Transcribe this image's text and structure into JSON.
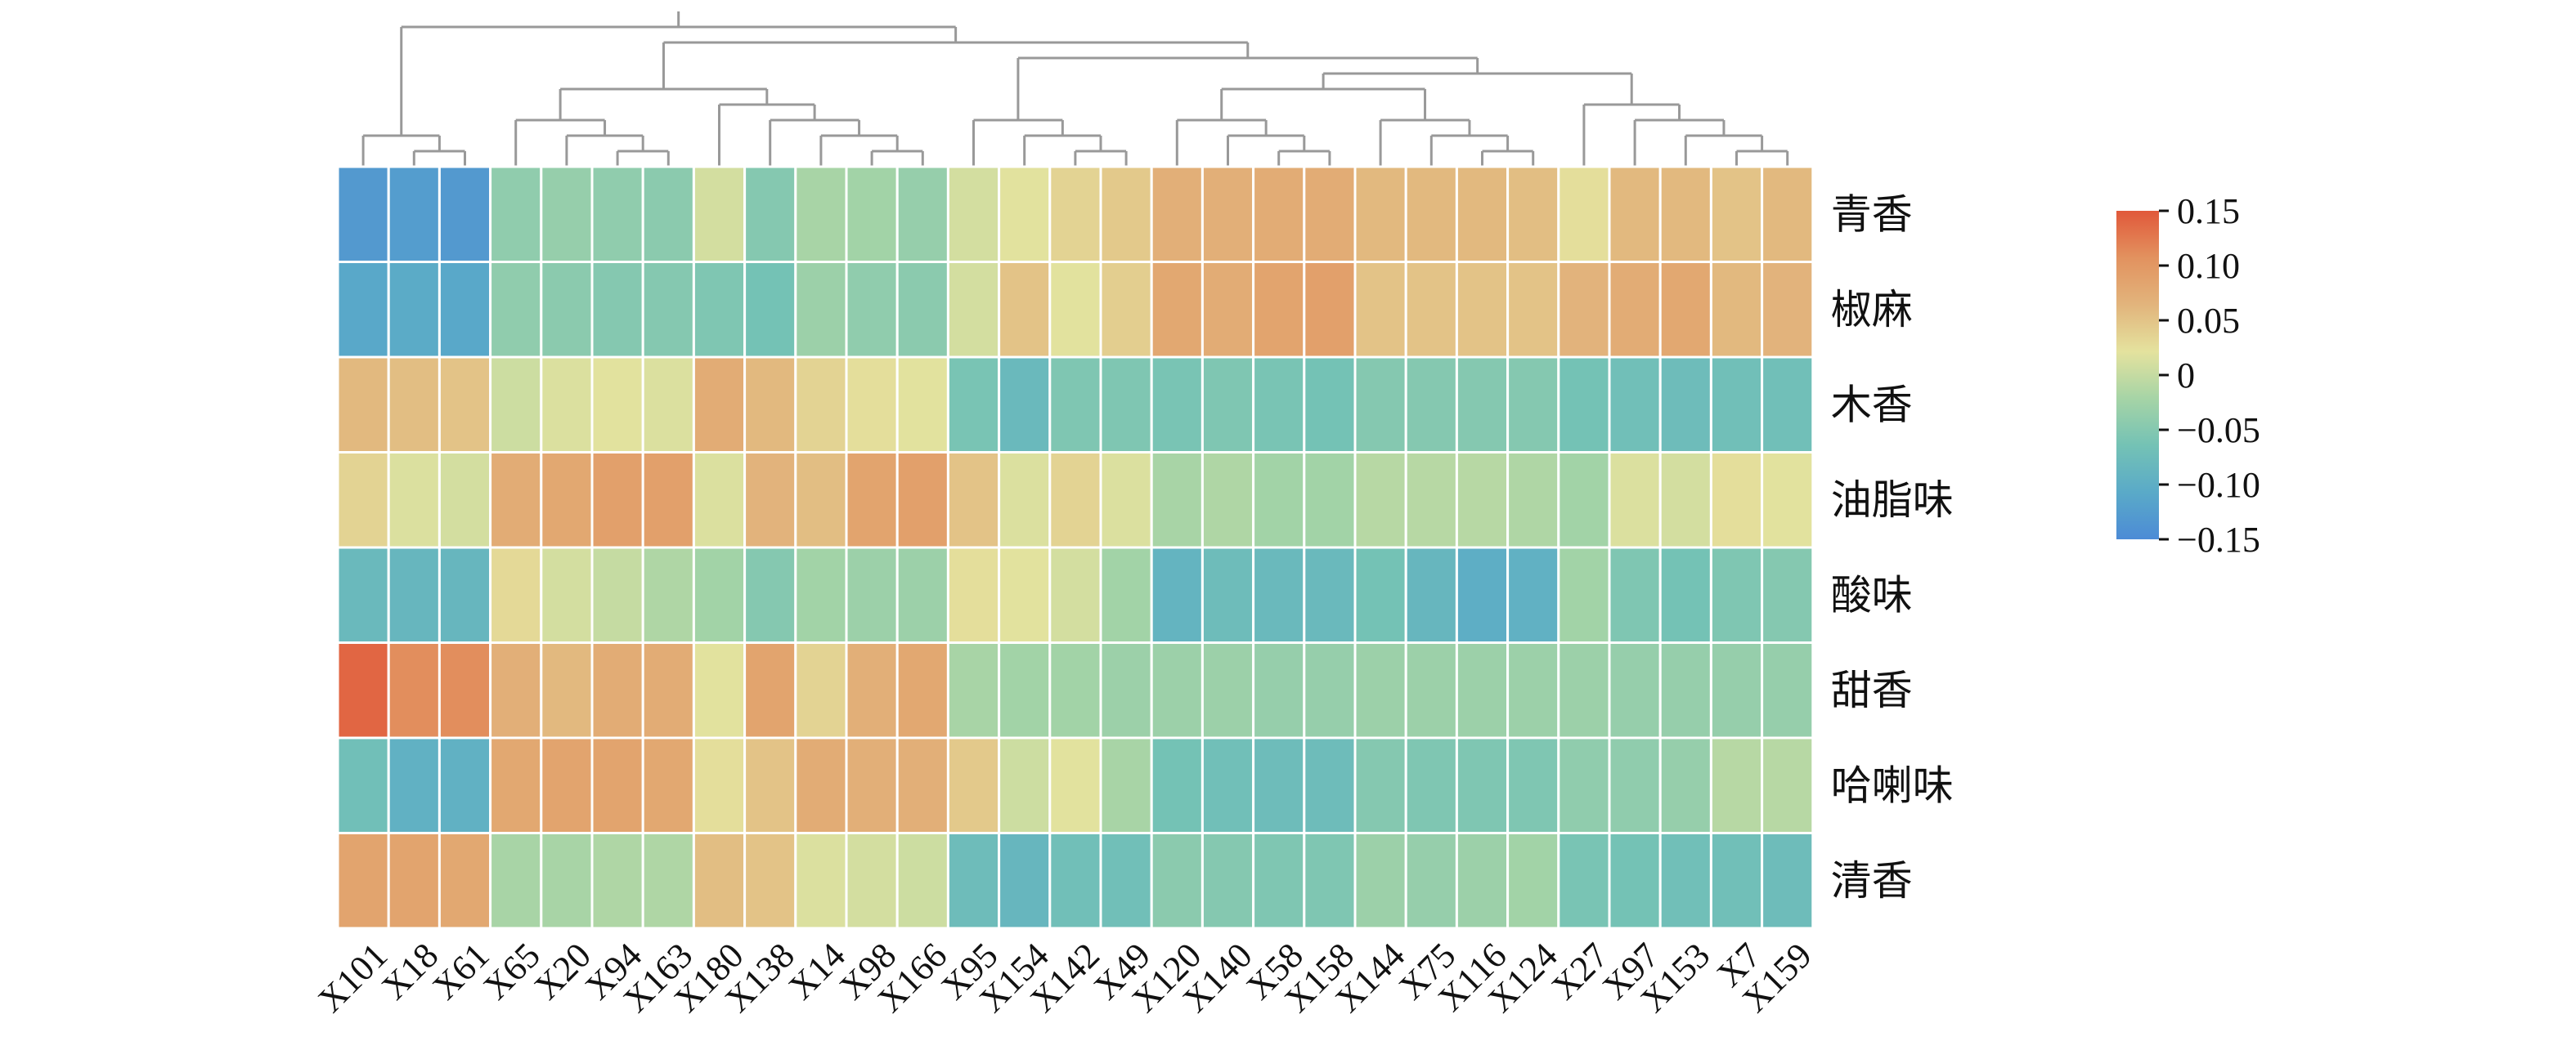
{
  "chart_data": {
    "type": "heatmap",
    "title": "",
    "rows": [
      "青香",
      "椒麻",
      "木香",
      "油脂味",
      "酸味",
      "甜香",
      "哈喇味",
      "清香"
    ],
    "columns": [
      "X101",
      "X18",
      "X61",
      "X65",
      "X20",
      "X94",
      "X163",
      "X180",
      "X138",
      "X14",
      "X98",
      "X166",
      "X95",
      "X154",
      "X142",
      "X49",
      "X120",
      "X140",
      "X58",
      "X158",
      "X144",
      "X75",
      "X116",
      "X124",
      "X27",
      "X97",
      "X153",
      "X7",
      "X159"
    ],
    "values": [
      [
        -0.13,
        -0.125,
        -0.13,
        -0.04,
        -0.035,
        -0.04,
        -0.045,
        0.01,
        -0.05,
        -0.02,
        -0.025,
        -0.035,
        0.01,
        0.02,
        0.035,
        0.045,
        0.07,
        0.07,
        0.075,
        0.075,
        0.06,
        0.06,
        0.06,
        0.055,
        0.025,
        0.06,
        0.06,
        0.05,
        0.06
      ],
      [
        -0.11,
        -0.105,
        -0.11,
        -0.04,
        -0.045,
        -0.05,
        -0.05,
        -0.055,
        -0.065,
        -0.03,
        -0.04,
        -0.045,
        0.01,
        0.05,
        0.02,
        0.04,
        0.08,
        0.075,
        0.085,
        0.09,
        0.05,
        0.05,
        0.05,
        0.05,
        0.065,
        0.075,
        0.08,
        0.06,
        0.065
      ],
      [
        0.06,
        0.055,
        0.05,
        0.005,
        0.015,
        0.02,
        0.015,
        0.075,
        0.06,
        0.035,
        0.025,
        0.02,
        -0.06,
        -0.08,
        -0.055,
        -0.055,
        -0.06,
        -0.055,
        -0.06,
        -0.065,
        -0.05,
        -0.05,
        -0.05,
        -0.05,
        -0.065,
        -0.07,
        -0.075,
        -0.07,
        -0.07
      ],
      [
        0.035,
        0.015,
        0.01,
        0.075,
        0.08,
        0.09,
        0.09,
        0.015,
        0.065,
        0.055,
        0.085,
        0.09,
        0.05,
        0.015,
        0.035,
        0.015,
        -0.02,
        -0.015,
        -0.025,
        -0.025,
        -0.01,
        -0.01,
        -0.01,
        -0.015,
        -0.025,
        0.015,
        0.01,
        0.025,
        0.02
      ],
      [
        -0.08,
        -0.085,
        -0.085,
        0.03,
        0.01,
        0.0,
        -0.015,
        -0.025,
        -0.05,
        -0.025,
        -0.03,
        -0.03,
        0.025,
        0.02,
        0.01,
        -0.025,
        -0.09,
        -0.075,
        -0.08,
        -0.08,
        -0.065,
        -0.085,
        -0.1,
        -0.095,
        -0.025,
        -0.055,
        -0.065,
        -0.055,
        -0.05
      ],
      [
        0.14,
        0.11,
        0.11,
        0.07,
        0.06,
        0.075,
        0.075,
        0.02,
        0.085,
        0.035,
        0.07,
        0.08,
        -0.02,
        -0.025,
        -0.025,
        -0.03,
        -0.03,
        -0.03,
        -0.035,
        -0.035,
        -0.03,
        -0.03,
        -0.03,
        -0.03,
        -0.03,
        -0.035,
        -0.035,
        -0.035,
        -0.035
      ],
      [
        -0.07,
        -0.095,
        -0.095,
        0.08,
        0.085,
        0.085,
        0.08,
        0.025,
        0.05,
        0.075,
        0.07,
        0.07,
        0.045,
        0.005,
        0.02,
        -0.02,
        -0.065,
        -0.07,
        -0.075,
        -0.075,
        -0.05,
        -0.055,
        -0.055,
        -0.055,
        -0.04,
        -0.04,
        -0.035,
        -0.01,
        -0.01
      ],
      [
        0.085,
        0.085,
        0.08,
        -0.02,
        -0.02,
        -0.015,
        -0.015,
        0.055,
        0.05,
        0.015,
        0.01,
        0.005,
        -0.075,
        -0.085,
        -0.07,
        -0.07,
        -0.045,
        -0.05,
        -0.055,
        -0.055,
        -0.03,
        -0.035,
        -0.03,
        -0.025,
        -0.06,
        -0.065,
        -0.07,
        -0.07,
        -0.075
      ]
    ],
    "colorbar": {
      "range": [
        -0.15,
        0.15
      ],
      "tick_values": [
        0.15,
        0.1,
        0.05,
        0,
        -0.05,
        -0.1,
        -0.15
      ],
      "tick_labels": [
        "0.15",
        "0.10",
        "0.05",
        "0",
        "−0.05",
        "−0.10",
        "−0.15"
      ],
      "colors": [
        "#4C8BD6",
        "#5AAAC8",
        "#74C2B5",
        "#A6D4A6",
        "#E4E29E",
        "#E2B47C",
        "#E2925F",
        "#E1583A"
      ]
    },
    "column_dendrogram": true,
    "grid": "white cell borders"
  }
}
